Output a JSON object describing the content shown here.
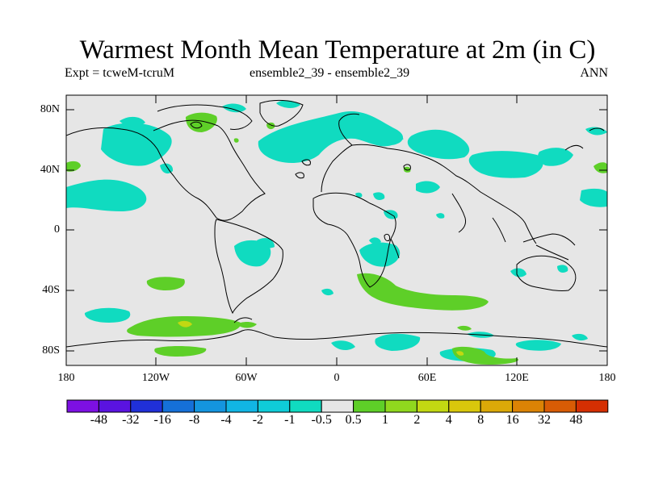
{
  "title": "Warmest Month Mean Temperature at 2m (in C)",
  "subtitle_left": "Expt = tcweM-tcruM",
  "subtitle_center": "ensemble2_39 - ensemble2_39",
  "subtitle_right": "ANN",
  "lat_ticks": [
    "80N",
    "40N",
    "0",
    "40S",
    "80S"
  ],
  "lon_ticks": [
    "180",
    "120W",
    "60W",
    "0",
    "60E",
    "120E",
    "180"
  ],
  "background_color": "#e6e6e6",
  "colorbar": {
    "colors": [
      "#7d10e3",
      "#5a13e0",
      "#2030d8",
      "#1570d8",
      "#1495df",
      "#11b5e4",
      "#0fccd8",
      "#10dbc0",
      "#e6e6e6",
      "#5ecf28",
      "#90d81e",
      "#c2d812",
      "#d9c70c",
      "#dba908",
      "#db8305",
      "#d85c05",
      "#d52f02"
    ],
    "labels": [
      "-48",
      "-32",
      "-16",
      "-8",
      "-4",
      "-2",
      "-1",
      "-0.5",
      "0.5",
      "1",
      "2",
      "4",
      "8",
      "16",
      "32",
      "48"
    ]
  }
}
